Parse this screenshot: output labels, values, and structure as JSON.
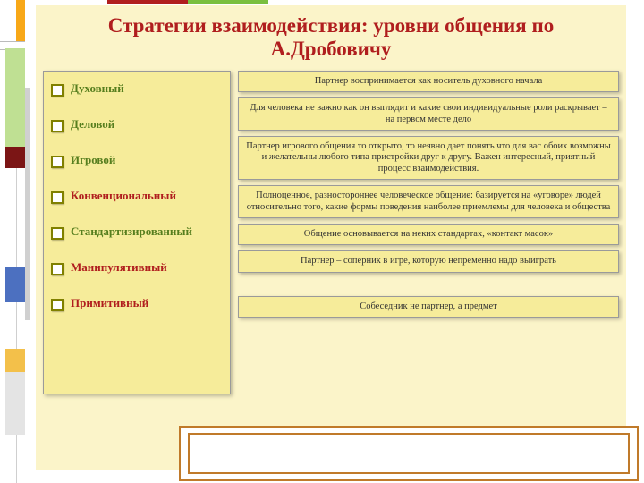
{
  "title": "Стратегии взаимодействия: уровни общения по А.Дробовичу",
  "colors": {
    "background_slide": "#fbf4c9",
    "panel_fill": "#f6ec9a",
    "panel_border": "#9a9a9a",
    "title_color": "#b01e1e",
    "bullet_border": "#808000",
    "text_green": "#567e1e",
    "text_red": "#b01e1e",
    "accent_orange": "#f8a818",
    "accent_green": "#bfe093",
    "accent_blue": "#4c70c0",
    "accent_dark_red": "#7b1515"
  },
  "levels": [
    {
      "label": "Духовный",
      "color": "green"
    },
    {
      "label": "Деловой",
      "color": "green"
    },
    {
      "label": "Игровой",
      "color": "green"
    },
    {
      "label": "Конвенциональный",
      "color": "red"
    },
    {
      "label": "Стандартизированный",
      "color": "green"
    },
    {
      "label": "Манипулятивный",
      "color": "red"
    },
    {
      "label": "Примитивный",
      "color": "red"
    }
  ],
  "descriptions": [
    "Партнер воспринимается как носитель духовного начала",
    "Для человека не важно как он выглядит и какие свои индивидуальные роли раскрывает – на первом месте дело",
    "Партнер игрового общения то открыто, то неявно дает понять что для вас обоих возможны и желательны любого типа пристройки друг к другу. Важен интересный, приятный процесс взаимодействия.",
    "Полноценное, разностороннее человеческое общение: базируется на «уговоре» людей относительно того, какие формы поведения наиболее приемлемы для человека и общества",
    "Общение основывается на неких стандартах, «контакт масок»",
    "Партнер – соперник в игре, которую непременно надо выиграть",
    "Собеседник не партнер, а предмет"
  ]
}
